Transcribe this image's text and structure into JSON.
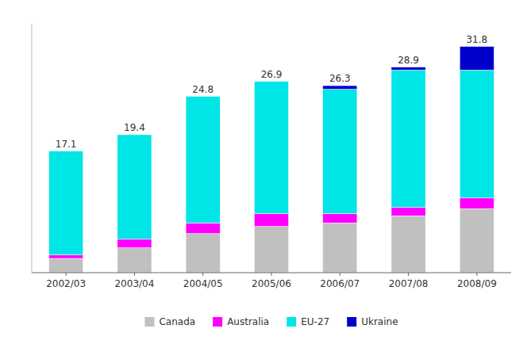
{
  "chart_data": {
    "type": "bar",
    "stacked": true,
    "categories": [
      "2002/03",
      "2003/04",
      "2004/05",
      "2005/06",
      "2006/07",
      "2007/08",
      "2008/09"
    ],
    "series": [
      {
        "name": "Canada",
        "color": "#c0c0c0",
        "values": [
          2.0,
          3.5,
          5.5,
          6.5,
          7.0,
          8.0,
          9.0
        ]
      },
      {
        "name": "Australia",
        "color": "#ff00ff",
        "values": [
          0.5,
          1.2,
          1.5,
          1.8,
          1.3,
          1.2,
          1.5
        ]
      },
      {
        "name": "EU-27",
        "color": "#00e5e5",
        "values": [
          14.6,
          14.7,
          17.8,
          18.6,
          17.5,
          19.3,
          18.0
        ]
      },
      {
        "name": "Ukraine",
        "color": "#0000cd",
        "values": [
          0.0,
          0.0,
          0.0,
          0.0,
          0.5,
          0.4,
          3.3
        ]
      }
    ],
    "totals": [
      17.1,
      19.4,
      24.8,
      26.9,
      26.3,
      28.9,
      31.8
    ],
    "ylim": [
      0,
      35
    ],
    "tick_labels": "x",
    "grid": false,
    "legend": "bottom"
  }
}
